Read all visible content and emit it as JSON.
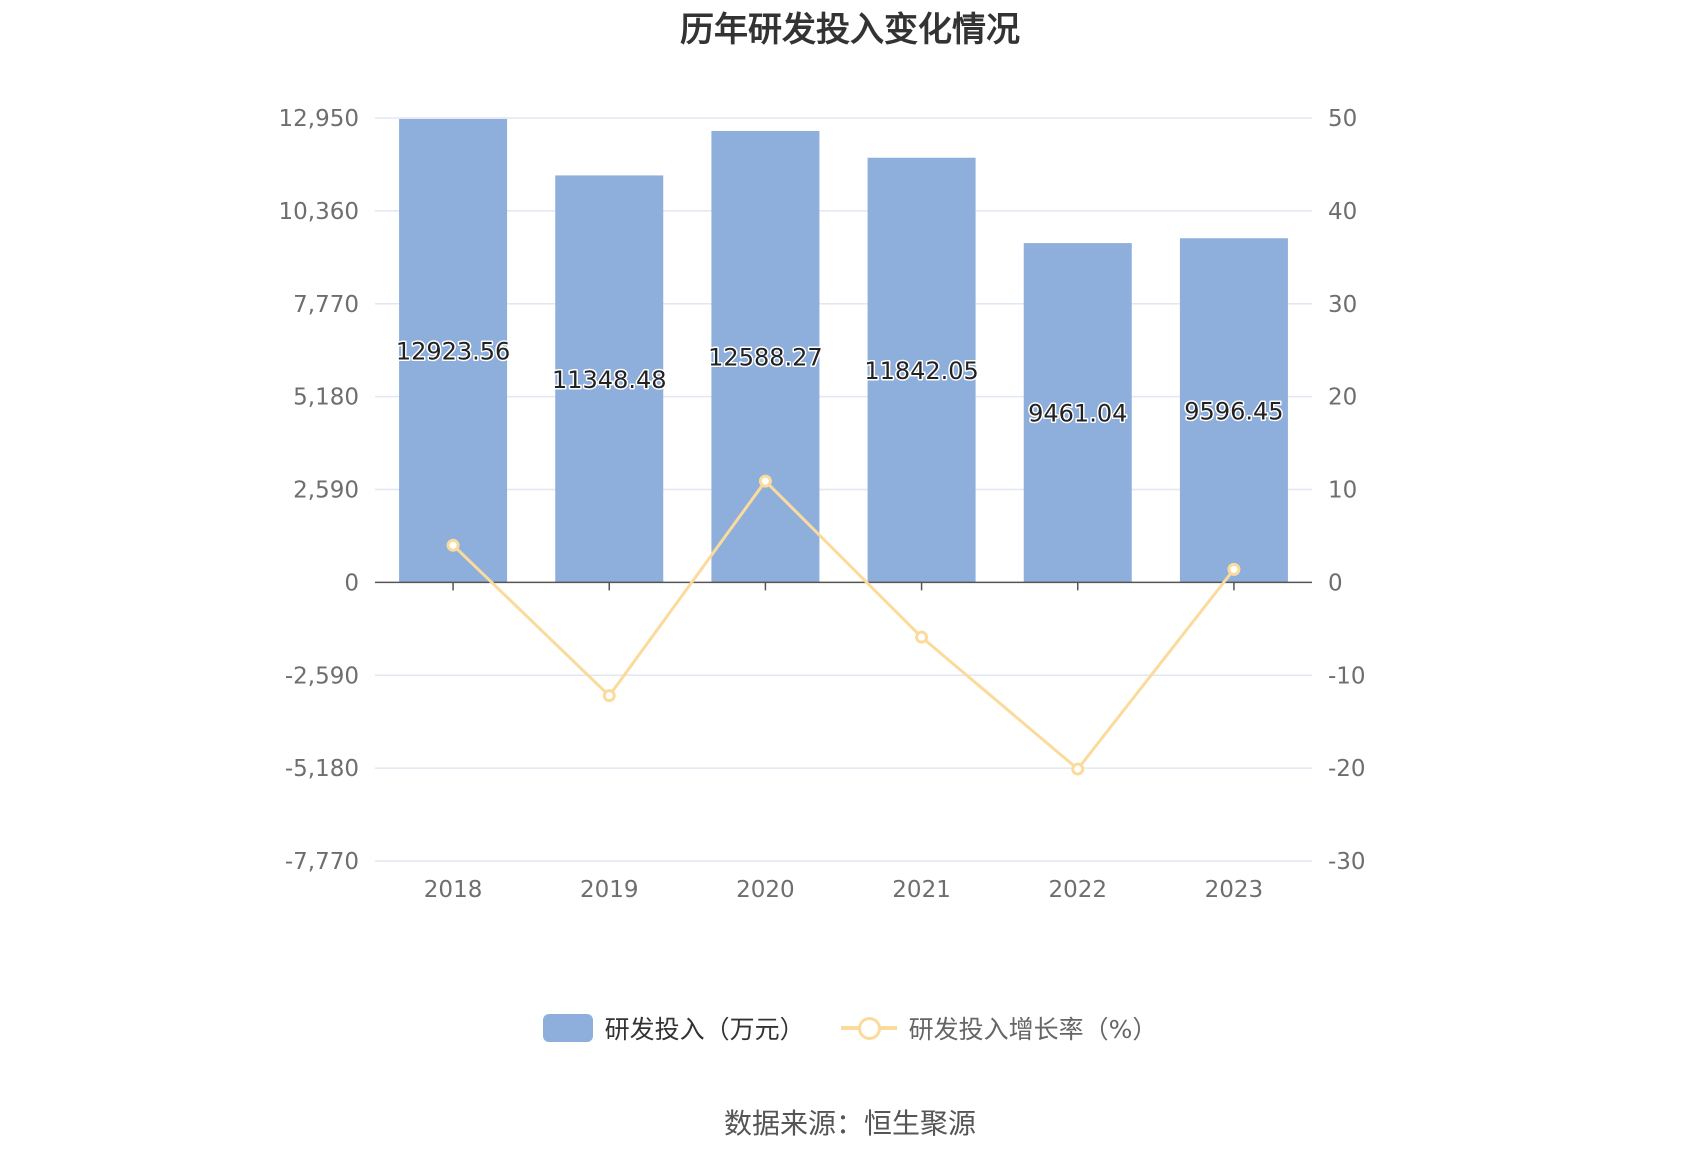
{
  "chart_data": {
    "type": "bar",
    "title": "历年研发投入变化情况",
    "categories": [
      "2018",
      "2019",
      "2020",
      "2021",
      "2022",
      "2023"
    ],
    "series": [
      {
        "name": "研发投入（万元）",
        "type": "bar",
        "axis": "left",
        "color": "#8eaedb",
        "values": [
          12923.56,
          11348.48,
          12588.27,
          11842.05,
          9461.04,
          9596.45
        ],
        "labels": [
          "12923.56",
          "11348.48",
          "12588.27",
          "11842.05",
          "9461.04",
          "9596.45"
        ]
      },
      {
        "name": "研发投入增长率（%）",
        "type": "line",
        "axis": "right",
        "color": "#fbdb9c",
        "values": [
          4.0,
          -12.2,
          10.9,
          -5.9,
          -20.1,
          1.4
        ]
      }
    ],
    "y_left": {
      "ylim": [
        -7770,
        12950
      ],
      "ticks": [
        "12,950",
        "10,360",
        "7,770",
        "5,180",
        "2,590",
        "0",
        "-2,590",
        "-5,180",
        "-7,770"
      ]
    },
    "y_right": {
      "ylim": [
        -30,
        50
      ],
      "ticks": [
        "50",
        "40",
        "30",
        "20",
        "10",
        "0",
        "-10",
        "-20",
        "-30"
      ]
    },
    "grid": true,
    "legend_position": "bottom"
  },
  "source_text": "数据来源：恒生聚源"
}
